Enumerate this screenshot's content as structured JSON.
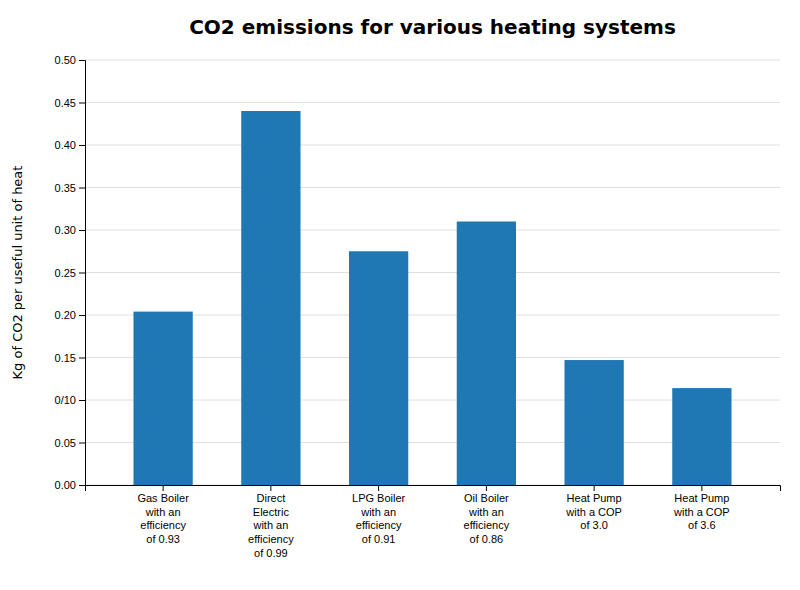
{
  "chart_data": {
    "type": "bar",
    "title": "CO2 emissions for various heating systems",
    "ylabel": "Kg of CO2 per useful unit of heat",
    "categories": [
      "Gas Boiler\nwith an\nefficiency\nof 0.93",
      "Direct\nElectric\nwith an\nefficiency\nof 0.99",
      "LPG Boiler\nwith an\nefficiency\nof 0.91",
      "Oil Boiler\nwith an\nefficiency\nof 0.86",
      "Heat Pump\nwith a COP\nof 3.0",
      "Heat Pump\nwith a COP\nof 3.6"
    ],
    "values": [
      0.204,
      0.44,
      0.275,
      0.31,
      0.147,
      0.114
    ],
    "ylim": [
      0.0,
      0.5
    ],
    "yticks": [
      {
        "value": 0.0,
        "label": "0.00"
      },
      0.05,
      {
        "value": 0.1,
        "label": "0/10"
      },
      0.15,
      {
        "value": 0.2,
        "label": "0.20"
      },
      0.25,
      {
        "value": 0.3,
        "label": "0.30"
      },
      0.35,
      {
        "value": 0.4,
        "label": "0.40"
      },
      0.45,
      {
        "value": 0.5,
        "label": "0.50"
      }
    ],
    "grid": true
  }
}
